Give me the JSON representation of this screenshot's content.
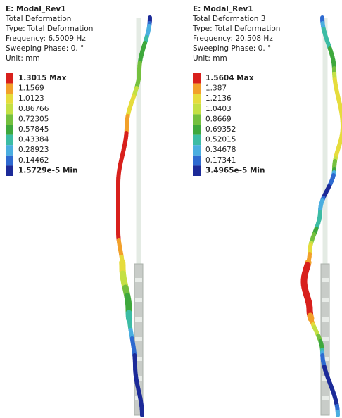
{
  "panels": [
    {
      "title": "E: Modal_Rev1",
      "lines": [
        "Total Deformation",
        "Type: Total Deformation",
        "Frequency: 6.5009 Hz",
        "Sweeping Phase: 0. °",
        "Unit: mm"
      ],
      "legend": [
        "1.3015 Max",
        "1.1569",
        "1.0123",
        "0.86766",
        "0.72305",
        "0.57845",
        "0.43384",
        "0.28923",
        "0.14462",
        "1.5729e-5 Min"
      ]
    },
    {
      "title": "E: Modal_Rev1",
      "lines": [
        "Total Deformation 3",
        "Type: Total Deformation",
        "Frequency: 20.508 Hz",
        "Sweeping Phase: 0. °",
        "Unit: mm"
      ],
      "legend": [
        "1.5604 Max",
        "1.387",
        "1.2136",
        "1.0403",
        "0.8669",
        "0.69352",
        "0.52015",
        "0.34678",
        "0.17341",
        "3.4965e-5 Min"
      ]
    }
  ]
}
